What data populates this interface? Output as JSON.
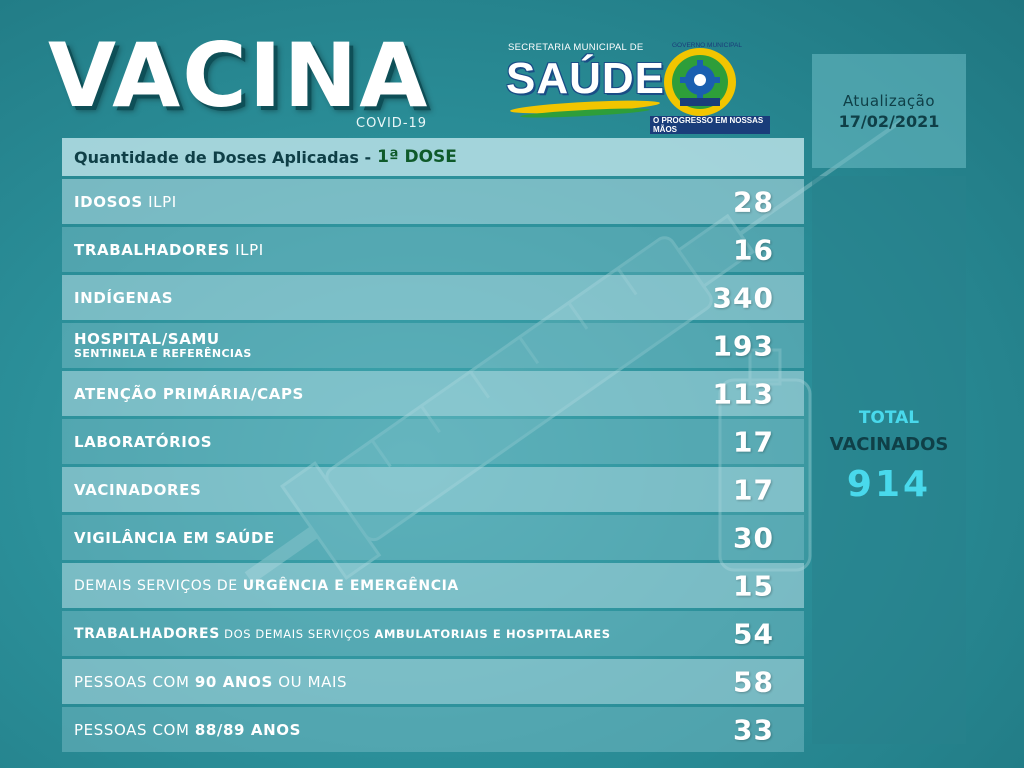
{
  "header": {
    "title": "VACINA",
    "subtitle": "COVID-19"
  },
  "logo": {
    "secretaria": "SECRETARIA MUNICIPAL DE",
    "saude": "SAÚDE",
    "governo": "GOVERNO MUNICIPAL",
    "motto": "O PROGRESSO EM NOSSAS MÃOS"
  },
  "update": {
    "label": "Atualização",
    "date": "17/02/2021"
  },
  "table": {
    "heading": "Quantidade de Doses Aplicadas -",
    "dose": "1ª DOSE",
    "rows": [
      {
        "bold": "IDOSOS",
        "thin": " ILPI",
        "value": "28"
      },
      {
        "bold": "TRABALHADORES",
        "thin": " ILPI",
        "value": "16"
      },
      {
        "bold": "INDÍGENAS",
        "value": "340"
      },
      {
        "bold": "HOSPITAL/SAMU",
        "small": "SENTINELA E REFERÊNCIAS",
        "value": "193"
      },
      {
        "bold": "ATENÇÃO PRIMÁRIA/CAPS",
        "value": "113"
      },
      {
        "bold": "LABORATÓRIOS",
        "value": "17"
      },
      {
        "bold": "VACINADORES",
        "value": "17"
      },
      {
        "bold": "VIGILÂNCIA EM SAÚDE",
        "value": "30"
      },
      {
        "thin_pre": "DEMAIS SERVIÇOS DE ",
        "bold": "URGÊNCIA E EMERGÊNCIA",
        "value": "15"
      },
      {
        "bold": "TRABALHADORES",
        "thin_mid": " DOS DEMAIS SERVIÇOS ",
        "bold2": "AMBULATORIAIS E HOSPITALARES",
        "value": "54"
      },
      {
        "thin_pre": "PESSOAS COM ",
        "bold": "90 ANOS",
        "thin": " OU MAIS",
        "value": "58"
      },
      {
        "thin_pre": "PESSOAS COM ",
        "bold": "88/89 ANOS",
        "value": "33"
      }
    ]
  },
  "total": {
    "label1": "TOTAL",
    "label2": "VACINADOS",
    "value": "914"
  }
}
